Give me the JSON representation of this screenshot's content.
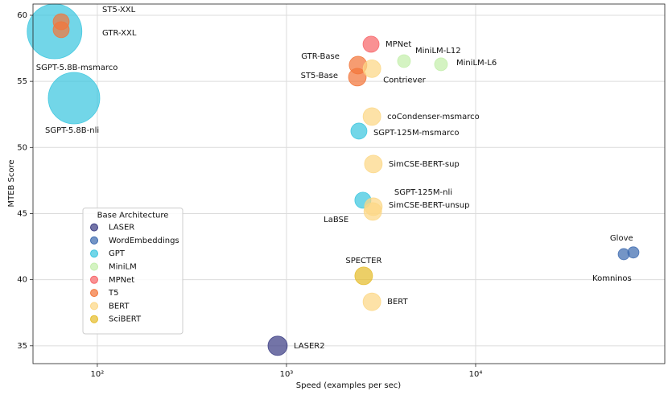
{
  "chart_data": {
    "type": "scatter",
    "xlabel": "Speed (examples per sec)",
    "ylabel": "MTEB Score",
    "xscale": "log",
    "xlim": [
      45.7,
      100000
    ],
    "ylim": [
      33.65,
      60.85
    ],
    "xticks": [
      {
        "value": 100,
        "label": "10²"
      },
      {
        "value": 1000,
        "label": "10³"
      },
      {
        "value": 10000,
        "label": "10⁴"
      }
    ],
    "yticks": [
      35,
      40,
      45,
      50,
      55,
      60
    ],
    "grid": true,
    "legend": "lower left",
    "legend_title": "Base Architecture",
    "series": [
      {
        "name": "LASER",
        "color": "#3d3f85",
        "x": [
          898
        ],
        "values": [
          35.0
        ],
        "sizes": [
          144
        ],
        "labels": [
          "LASER2"
        ]
      },
      {
        "name": "WordEmbeddings",
        "color": "#3f6cb0",
        "x": [
          68200,
          60700
        ],
        "values": [
          42.06,
          41.93
        ],
        "sizes": [
          49,
          49
        ],
        "labels": [
          "Glove",
          "Komninos"
        ]
      },
      {
        "name": "GPT",
        "color": "#3cc6df",
        "x": [
          59.4,
          75.3,
          2415,
          2535
        ],
        "values": [
          58.78,
          53.73,
          51.24,
          46.01
        ],
        "sizes": [
          1156,
          1024,
          100,
          100
        ],
        "labels": [
          "SGPT-5.8B-msmarco",
          "SGPT-5.8B-nli",
          "SGPT-125M-msmarco",
          "SGPT-125M-nli"
        ]
      },
      {
        "name": "MiniLM",
        "color": "#c3eeab",
        "x": [
          4180,
          6560
        ],
        "values": [
          56.53,
          56.29
        ],
        "sizes": [
          64,
          64
        ],
        "labels": [
          "MiniLM-L12",
          "MiniLM-L6"
        ]
      },
      {
        "name": "MPNet",
        "color": "#f7666a",
        "x": [
          2800
        ],
        "values": [
          57.81
        ],
        "sizes": [
          100
        ],
        "labels": [
          "MPNet"
        ]
      },
      {
        "name": "T5",
        "color": "#f2763a",
        "x": [
          64.4,
          64.4,
          2390,
          2370
        ],
        "values": [
          59.51,
          58.91,
          56.23,
          55.32
        ],
        "sizes": [
          100,
          100,
          121,
          121
        ],
        "labels": [
          "ST5-XXL",
          "GTR-XXL",
          "GTR-Base",
          "ST5-Base"
        ]
      },
      {
        "name": "BERT",
        "color": "#fcd785",
        "x": [
          2830,
          2830,
          2880,
          2880,
          2860,
          2830
        ],
        "values": [
          55.96,
          52.34,
          48.75,
          45.52,
          45.16,
          38.33
        ],
        "sizes": [
          121,
          121,
          121,
          121,
          121,
          121
        ],
        "labels": [
          "Contriever",
          "coCondenser-msmarco",
          "SimCSE-BERT-sup",
          "SimCSE-BERT-unsup",
          "LaBSE",
          "BERT"
        ]
      },
      {
        "name": "SciBERT",
        "color": "#e5bd2c",
        "x": [
          2560
        ],
        "values": [
          40.29
        ],
        "sizes": [
          121
        ],
        "labels": [
          "SPECTER"
        ]
      }
    ]
  }
}
